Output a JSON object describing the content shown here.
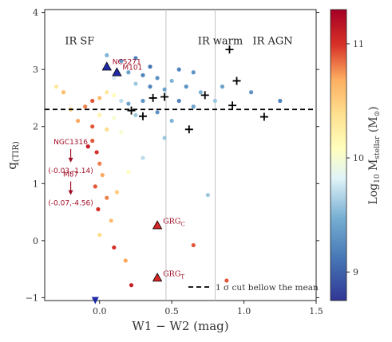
{
  "chart_data": {
    "type": "scatter",
    "xlabel": "W1 − W2 (mag)",
    "ylabel": "q(TIR)",
    "xlim": [
      -0.38,
      1.5
    ],
    "ylim": [
      -1.05,
      4.05
    ],
    "xticks": [
      0,
      0.5,
      1,
      1.5
    ],
    "xtick_labels": [
      "0.0",
      "0.5",
      "1.0",
      "1.5"
    ],
    "yticks": [
      -1,
      0,
      1,
      2,
      3,
      4
    ],
    "ytick_labels": [
      "−1",
      "0",
      "1",
      "2",
      "3",
      "4"
    ],
    "grid": false,
    "region_labels": [
      {
        "text": "IR SF",
        "x": -0.24,
        "y": 3.5
      },
      {
        "text": "IR warm",
        "x": 0.68,
        "y": 3.5
      },
      {
        "text": "IR AGN",
        "x": 1.06,
        "y": 3.5
      }
    ],
    "vertical_lines": [
      0.46,
      0.8
    ],
    "cut_line": {
      "y": 2.3,
      "label": "1 σ cut bellow the mean"
    },
    "colorbar": {
      "label": "Log10 Mstellar (M⊙)",
      "range": [
        8.75,
        11.3
      ],
      "ticks": [
        9,
        10,
        11
      ],
      "tick_labels": [
        "9",
        "10",
        "11"
      ]
    },
    "labeled_points": [
      {
        "name": "NGC5271",
        "display": "NC5271",
        "x": 0.05,
        "y": 3.05,
        "marker": "triangle",
        "color": "#1f2aa8"
      },
      {
        "name": "M101",
        "display": "M101",
        "x": 0.12,
        "y": 2.95,
        "marker": "triangle",
        "color": "#1f2aa8"
      },
      {
        "name": "GRGC",
        "display": "GRG",
        "sub": "C",
        "x": 0.4,
        "y": 0.27,
        "marker": "triangle",
        "color": "#d62728"
      },
      {
        "name": "GRGT",
        "display": "GRG",
        "sub": "T",
        "x": 0.4,
        "y": -0.65,
        "marker": "triangle",
        "color": "#d62728"
      }
    ],
    "arrow_annotations": [
      {
        "name": "NGC1316",
        "coords": "(-0.03,-1.14)",
        "x": -0.2,
        "y": 1.3
      },
      {
        "name": "M87",
        "coords": "(-0.07,-4.56)",
        "x": -0.2,
        "y": 0.73
      }
    ],
    "plus_points": [
      {
        "x": 0.9,
        "y": 3.35
      },
      {
        "x": 0.95,
        "y": 2.8
      },
      {
        "x": 0.73,
        "y": 2.55
      },
      {
        "x": 0.45,
        "y": 2.52
      },
      {
        "x": 0.37,
        "y": 2.5
      },
      {
        "x": 0.92,
        "y": 2.37
      },
      {
        "x": 0.22,
        "y": 2.28
      },
      {
        "x": 0.3,
        "y": 2.18
      },
      {
        "x": 0.62,
        "y": 1.95
      },
      {
        "x": 1.14,
        "y": 2.17
      }
    ],
    "down_triangles": [
      {
        "x": -0.03,
        "y": -1.05
      }
    ],
    "series": [
      {
        "name": "galaxies",
        "description": "color encodes Log10 Mstellar",
        "points": [
          {
            "x": 0.05,
            "y": 3.25,
            "m": 9.5
          },
          {
            "x": 0.15,
            "y": 3.15,
            "m": 9.3
          },
          {
            "x": 0.2,
            "y": 2.95,
            "m": 9.4
          },
          {
            "x": 0.3,
            "y": 2.9,
            "m": 9.2
          },
          {
            "x": 0.4,
            "y": 2.85,
            "m": 9.3
          },
          {
            "x": 0.5,
            "y": 2.8,
            "m": 9.5
          },
          {
            "x": 0.1,
            "y": 2.85,
            "m": 9.8
          },
          {
            "x": 0.25,
            "y": 2.75,
            "m": 9.6
          },
          {
            "x": 0.35,
            "y": 2.7,
            "m": 9.2
          },
          {
            "x": 0.45,
            "y": 2.65,
            "m": 9.4
          },
          {
            "x": 0.6,
            "y": 2.7,
            "m": 9.3
          },
          {
            "x": 0.7,
            "y": 2.6,
            "m": 9.5
          },
          {
            "x": 0.05,
            "y": 2.6,
            "m": 10.3
          },
          {
            "x": 0.0,
            "y": 2.5,
            "m": 10.6
          },
          {
            "x": -0.05,
            "y": 2.45,
            "m": 10.9
          },
          {
            "x": 0.1,
            "y": 2.55,
            "m": 10.1
          },
          {
            "x": 0.15,
            "y": 2.45,
            "m": 9.7
          },
          {
            "x": 0.2,
            "y": 2.4,
            "m": 9.4
          },
          {
            "x": 0.3,
            "y": 2.45,
            "m": 9.3
          },
          {
            "x": 0.55,
            "y": 2.45,
            "m": 9.2
          },
          {
            "x": 0.65,
            "y": 2.35,
            "m": 9.4
          },
          {
            "x": 0.8,
            "y": 2.45,
            "m": 9.6
          },
          {
            "x": -0.1,
            "y": 2.35,
            "m": 10.8
          },
          {
            "x": -0.2,
            "y": 2.3,
            "m": 10.5
          },
          {
            "x": 0.0,
            "y": 2.2,
            "m": 10.2
          },
          {
            "x": 0.1,
            "y": 2.15,
            "m": 10.0
          },
          {
            "x": 0.25,
            "y": 2.2,
            "m": 9.6
          },
          {
            "x": 0.4,
            "y": 2.25,
            "m": 9.3
          },
          {
            "x": 0.5,
            "y": 2.1,
            "m": 9.5
          },
          {
            "x": -0.15,
            "y": 2.1,
            "m": 10.7
          },
          {
            "x": -0.05,
            "y": 2.0,
            "m": 10.9
          },
          {
            "x": 0.05,
            "y": 1.95,
            "m": 10.4
          },
          {
            "x": 0.15,
            "y": 1.9,
            "m": 10.0
          },
          {
            "x": -0.25,
            "y": 2.6,
            "m": 10.6
          },
          {
            "x": -0.3,
            "y": 2.7,
            "m": 10.3
          },
          {
            "x": 0.35,
            "y": 3.05,
            "m": 9.1
          },
          {
            "x": 0.25,
            "y": 3.2,
            "m": 9.2
          },
          {
            "x": 0.55,
            "y": 3.0,
            "m": 9.2
          },
          {
            "x": 0.65,
            "y": 2.95,
            "m": 9.3
          },
          {
            "x": 0.85,
            "y": 2.7,
            "m": 9.4
          },
          {
            "x": 1.25,
            "y": 2.45,
            "m": 9.2
          },
          {
            "x": 1.05,
            "y": 2.6,
            "m": 9.3
          },
          {
            "x": -0.05,
            "y": 1.75,
            "m": 10.9
          },
          {
            "x": -0.02,
            "y": 1.55,
            "m": 11.0
          },
          {
            "x": 0.0,
            "y": 1.35,
            "m": 10.8
          },
          {
            "x": -0.08,
            "y": 1.65,
            "m": 11.1
          },
          {
            "x": 0.02,
            "y": 1.15,
            "m": 10.7
          },
          {
            "x": -0.03,
            "y": 0.95,
            "m": 10.9
          },
          {
            "x": 0.05,
            "y": 0.75,
            "m": 10.8
          },
          {
            "x": -0.01,
            "y": 0.55,
            "m": 11.0
          },
          {
            "x": 0.08,
            "y": 0.35,
            "m": 10.6
          },
          {
            "x": 0.12,
            "y": 0.85,
            "m": 10.5
          },
          {
            "x": 0.2,
            "y": 1.2,
            "m": 10.1
          },
          {
            "x": 0.0,
            "y": 0.1,
            "m": 10.4
          },
          {
            "x": 0.75,
            "y": 0.8,
            "m": 9.6
          },
          {
            "x": 0.18,
            "y": -0.35,
            "m": 10.7
          },
          {
            "x": 0.22,
            "y": -0.78,
            "m": 11.1
          },
          {
            "x": 0.1,
            "y": -0.12,
            "m": 11.0
          },
          {
            "x": 0.65,
            "y": -0.08,
            "m": 10.9
          },
          {
            "x": 0.88,
            "y": -0.7,
            "m": 10.9
          },
          {
            "x": 0.3,
            "y": 1.45,
            "m": 9.7
          },
          {
            "x": 0.45,
            "y": 1.8,
            "m": 9.6
          }
        ]
      }
    ]
  }
}
